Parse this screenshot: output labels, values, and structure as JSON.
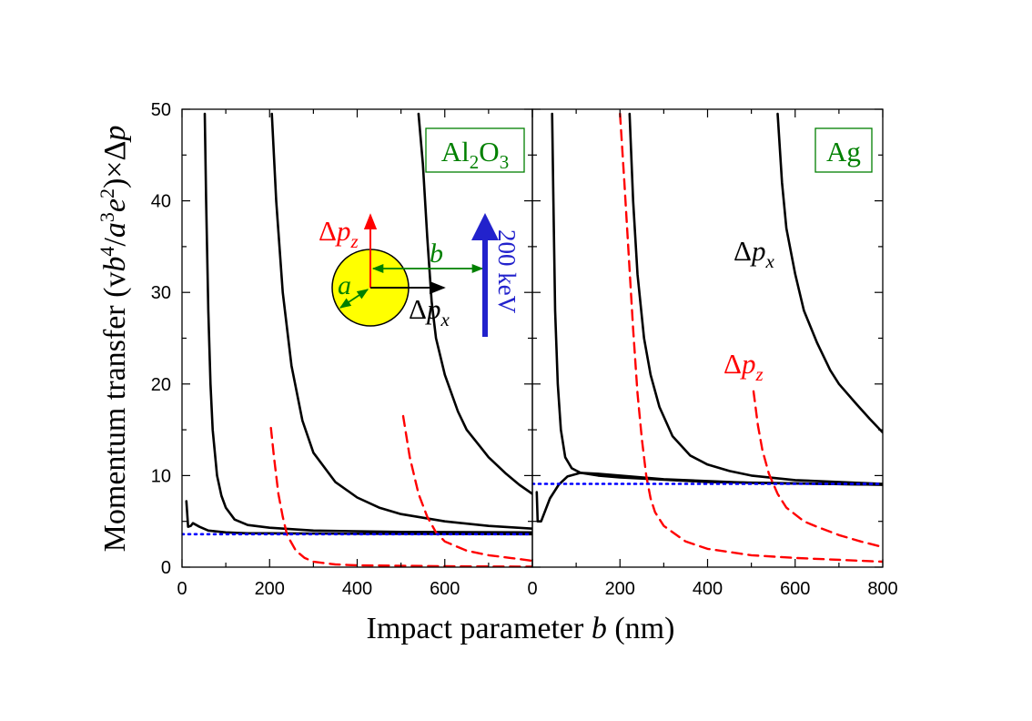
{
  "chart_data": [
    {
      "type": "line",
      "panel_label": "Al2O3",
      "xlim": [
        0,
        800
      ],
      "ylim": [
        0,
        50
      ],
      "xticks": [
        "0",
        "200",
        "400",
        "600"
      ],
      "yticks": [
        "0",
        "10",
        "20",
        "30",
        "40",
        "50"
      ],
      "series": [
        {
          "component": "dpx",
          "style": "solid",
          "color": "#000000",
          "points": [
            [
              10,
              7.2
            ],
            [
              14,
              4.4
            ],
            [
              20,
              4.5
            ],
            [
              25,
              4.8
            ],
            [
              40,
              4.4
            ],
            [
              60,
              4.0
            ],
            [
              100,
              3.8
            ],
            [
              150,
              3.7
            ],
            [
              200,
              3.7
            ],
            [
              400,
              3.65
            ],
            [
              800,
              3.6
            ]
          ]
        },
        {
          "component": "dpx",
          "style": "solid",
          "color": "#000000",
          "points": [
            [
              52,
              49.5
            ],
            [
              55,
              40
            ],
            [
              60,
              28
            ],
            [
              65,
              20
            ],
            [
              70,
              15
            ],
            [
              80,
              10
            ],
            [
              90,
              7.8
            ],
            [
              100,
              6.5
            ],
            [
              120,
              5.2
            ],
            [
              150,
              4.6
            ],
            [
              200,
              4.3
            ],
            [
              300,
              4.0
            ],
            [
              500,
              3.85
            ],
            [
              800,
              3.8
            ]
          ]
        },
        {
          "component": "dpx",
          "style": "solid",
          "color": "#000000",
          "points": [
            [
              205,
              49.5
            ],
            [
              215,
              40
            ],
            [
              230,
              30
            ],
            [
              250,
              22
            ],
            [
              275,
              16
            ],
            [
              300,
              12.5
            ],
            [
              350,
              9.3
            ],
            [
              400,
              7.6
            ],
            [
              450,
              6.5
            ],
            [
              500,
              5.8
            ],
            [
              600,
              5.0
            ],
            [
              700,
              4.5
            ],
            [
              800,
              4.2
            ]
          ]
        },
        {
          "component": "dpx",
          "style": "solid",
          "color": "#000000",
          "points": [
            [
              540,
              49.5
            ],
            [
              550,
              44
            ],
            [
              560,
              36
            ],
            [
              570,
              29
            ],
            [
              580,
              25
            ],
            [
              600,
              21
            ],
            [
              630,
              17
            ],
            [
              650,
              15
            ],
            [
              680,
              13.2
            ],
            [
              700,
              12
            ],
            [
              740,
              10.2
            ],
            [
              770,
              9
            ],
            [
              800,
              8
            ]
          ]
        },
        {
          "component": "dpz",
          "style": "dashed",
          "color": "#ff0000",
          "points": [
            [
              203,
              15.2
            ],
            [
              210,
              12
            ],
            [
              220,
              8
            ],
            [
              230,
              5.5
            ],
            [
              240,
              3.5
            ],
            [
              260,
              1.8
            ],
            [
              280,
              1.0
            ],
            [
              300,
              0.6
            ],
            [
              350,
              0.3
            ],
            [
              400,
              0.2
            ],
            [
              600,
              0.1
            ],
            [
              800,
              0.05
            ]
          ]
        },
        {
          "component": "dpz",
          "style": "dashed",
          "color": "#ff0000",
          "points": [
            [
              505,
              16.5
            ],
            [
              520,
              12
            ],
            [
              540,
              8
            ],
            [
              560,
              5.5
            ],
            [
              580,
              3.8
            ],
            [
              600,
              2.8
            ],
            [
              650,
              1.8
            ],
            [
              700,
              1.3
            ],
            [
              750,
              1.0
            ],
            [
              800,
              0.7
            ]
          ]
        },
        {
          "component": "asymptote",
          "style": "dotted",
          "color": "#0000ff",
          "points": [
            [
              0,
              3.6
            ],
            [
              800,
              3.6
            ]
          ]
        }
      ]
    },
    {
      "type": "line",
      "panel_label": "Ag",
      "xlim": [
        0,
        800
      ],
      "ylim": [
        0,
        50
      ],
      "xticks": [
        "0",
        "200",
        "400",
        "600",
        "800"
      ],
      "yticks": [
        "0",
        "10",
        "20",
        "30",
        "40",
        "50"
      ],
      "series": [
        {
          "component": "dpx",
          "style": "solid",
          "color": "#000000",
          "points": [
            [
              10,
              8.2
            ],
            [
              12,
              5.0
            ],
            [
              20,
              5.0
            ],
            [
              40,
              7.5
            ],
            [
              60,
              9.0
            ],
            [
              80,
              9.9
            ],
            [
              110,
              10.3
            ],
            [
              150,
              10.2
            ],
            [
              200,
              10.0
            ],
            [
              300,
              9.6
            ],
            [
              500,
              9.2
            ],
            [
              800,
              9.0
            ]
          ]
        },
        {
          "component": "dpx",
          "style": "solid",
          "color": "#000000",
          "points": [
            [
              45,
              49.5
            ],
            [
              48,
              40
            ],
            [
              52,
              28
            ],
            [
              58,
              20
            ],
            [
              65,
              15
            ],
            [
              75,
              12
            ],
            [
              90,
              10.8
            ],
            [
              110,
              10.3
            ],
            [
              150,
              10.0
            ],
            [
              200,
              9.8
            ],
            [
              400,
              9.3
            ],
            [
              800,
              9.0
            ]
          ]
        },
        {
          "component": "dpx",
          "style": "solid",
          "color": "#000000",
          "points": [
            [
              222,
              49.5
            ],
            [
              230,
              40
            ],
            [
              240,
              32
            ],
            [
              255,
              25
            ],
            [
              270,
              21
            ],
            [
              290,
              17.5
            ],
            [
              320,
              14.3
            ],
            [
              360,
              12.2
            ],
            [
              400,
              11.2
            ],
            [
              450,
              10.5
            ],
            [
              500,
              10.0
            ],
            [
              600,
              9.5
            ],
            [
              800,
              9.1
            ]
          ]
        },
        {
          "component": "dpx",
          "style": "solid",
          "color": "#000000",
          "points": [
            [
              560,
              49.5
            ],
            [
              570,
              42
            ],
            [
              580,
              37
            ],
            [
              600,
              32
            ],
            [
              620,
              28
            ],
            [
              650,
              24.5
            ],
            [
              680,
              21.5
            ],
            [
              700,
              20
            ],
            [
              740,
              17.8
            ],
            [
              770,
              16.2
            ],
            [
              800,
              14.7
            ]
          ]
        },
        {
          "component": "dpz",
          "style": "dashed",
          "color": "#ff0000",
          "points": [
            [
              200,
              49.5
            ],
            [
              210,
              42
            ],
            [
              220,
              34
            ],
            [
              230,
              26
            ],
            [
              240,
              19
            ],
            [
              250,
              14
            ],
            [
              260,
              10
            ],
            [
              270,
              7.5
            ],
            [
              280,
              6
            ],
            [
              300,
              4.5
            ],
            [
              350,
              2.8
            ],
            [
              400,
              2.0
            ],
            [
              500,
              1.3
            ],
            [
              600,
              1.0
            ],
            [
              800,
              0.6
            ]
          ]
        },
        {
          "component": "dpz",
          "style": "dashed",
          "color": "#ff0000",
          "points": [
            [
              505,
              19.2
            ],
            [
              515,
              15.5
            ],
            [
              525,
              12.8
            ],
            [
              540,
              10.2
            ],
            [
              560,
              8
            ],
            [
              580,
              6.5
            ],
            [
              620,
              5
            ],
            [
              650,
              4.4
            ],
            [
              700,
              3.5
            ],
            [
              750,
              2.8
            ],
            [
              800,
              2.2
            ]
          ]
        },
        {
          "component": "asymptote",
          "style": "dotted",
          "color": "#0000ff",
          "points": [
            [
              0,
              9.1
            ],
            [
              800,
              9.1
            ]
          ]
        }
      ]
    }
  ],
  "labels": {
    "ylabel": "Momentum transfer (vb⁴/a³e²)×Δp",
    "xlabel": "Impact parameter b (nm)",
    "panel_left": "Al2O3",
    "panel_right": "Ag",
    "dpx": "Δpx",
    "dpz": "Δpz",
    "beam_energy": "200 keV",
    "inset_a": "a",
    "inset_b": "b"
  },
  "colors": {
    "dpx_line": "#000000",
    "dpz_line": "#ff0000",
    "asymptote": "#0000ff",
    "panel_label": "#008000",
    "particle_fill": "#ffff00",
    "beam_arrow": "#2222cc"
  }
}
